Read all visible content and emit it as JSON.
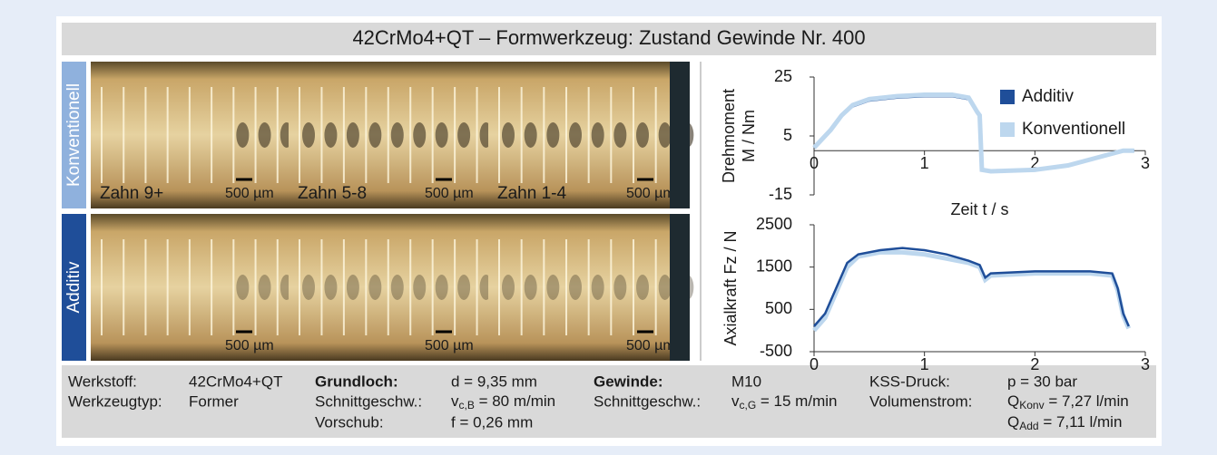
{
  "header": {
    "title": "42CrMo4+QT – Formwerkzeug: Zustand Gewinde Nr. 400"
  },
  "photos": {
    "rows": [
      "Konventionell",
      "Additiv"
    ],
    "zones": [
      "Zahn 9+",
      "Zahn 5-8",
      "Zahn 1-4"
    ],
    "scale": "500 µm"
  },
  "chart_data": [
    {
      "type": "line",
      "y_label": "Drehmoment\nM / Nm",
      "x_label": "Zeit t / s",
      "x": [
        0,
        0.05,
        0.15,
        0.25,
        0.35,
        0.5,
        0.75,
        1.0,
        1.25,
        1.4,
        1.48,
        1.5,
        1.52,
        1.6,
        2.0,
        2.3,
        2.6,
        2.8,
        2.9
      ],
      "series": [
        {
          "name": "Additiv",
          "color": "#1f4e99",
          "values": [
            1,
            3,
            7,
            12,
            15,
            17,
            18,
            18.5,
            18.5,
            17.5,
            13,
            12,
            -6.5,
            -7,
            -6.5,
            -5,
            -2,
            0,
            0
          ]
        },
        {
          "name": "Konventionell",
          "color": "#bdd7ee",
          "values": [
            1,
            3,
            7,
            12,
            15.5,
            17.5,
            18.5,
            19,
            19,
            18,
            13,
            12,
            -6.5,
            -7,
            -6.5,
            -5,
            -2,
            0,
            0
          ]
        }
      ],
      "xlim": [
        0,
        3
      ],
      "xticks": [
        0,
        1,
        2,
        3
      ],
      "ylim": [
        -15,
        25
      ],
      "yticks": [
        -15,
        5,
        25
      ],
      "x_axis_at": 0,
      "legend": "top-right"
    },
    {
      "type": "line",
      "y_label": "Axialkraft Fz / N",
      "x": [
        0,
        0.1,
        0.2,
        0.3,
        0.4,
        0.6,
        0.8,
        1.0,
        1.2,
        1.4,
        1.5,
        1.55,
        1.6,
        2.0,
        2.5,
        2.7,
        2.75,
        2.8,
        2.85
      ],
      "series": [
        {
          "name": "Konventionell",
          "color": "#bdd7ee",
          "values": [
            0,
            300,
            900,
            1500,
            1750,
            1850,
            1850,
            1800,
            1700,
            1600,
            1500,
            1200,
            1300,
            1350,
            1350,
            1300,
            950,
            350,
            50
          ]
        },
        {
          "name": "Additiv",
          "color": "#1f4e99",
          "values": [
            100,
            400,
            1000,
            1600,
            1800,
            1900,
            1950,
            1900,
            1800,
            1650,
            1550,
            1250,
            1350,
            1400,
            1400,
            1350,
            1000,
            400,
            100
          ]
        }
      ],
      "xlim": [
        0,
        3
      ],
      "xticks": [
        0,
        1,
        2,
        3
      ],
      "ylim": [
        -500,
        2500
      ],
      "yticks": [
        -500,
        500,
        1500,
        2500
      ],
      "x_axis_at": -500
    }
  ],
  "parameters": {
    "material": {
      "label": "Werkstoff:",
      "value": "42CrMo4+QT"
    },
    "tool": {
      "label": "Werkzeugtyp:",
      "value": "Former"
    },
    "hole": {
      "label": "Grundloch:",
      "value": "d = 9,35 mm"
    },
    "hole_speed": {
      "label": "Schnittgeschw.:",
      "main": "v",
      "sub": "c,B",
      "rest": " = 80 m/min"
    },
    "feed": {
      "label": "Vorschub:",
      "value": "f = 0,26 mm"
    },
    "thread": {
      "label": "Gewinde:",
      "value": "M10"
    },
    "thread_speed": {
      "label": "Schnittgeschw.:",
      "main": "v",
      "sub": "c,G",
      "rest": " = 15 m/min"
    },
    "pressure": {
      "label": "KSS-Druck:",
      "value": "p = 30 bar"
    },
    "flow": {
      "label": "Volumenstrom:",
      "main": "Q",
      "sub": "Konv",
      "rest": " = 7,27 l/min"
    },
    "flow2": {
      "main": "Q",
      "sub": "Add",
      "rest": " = 7,11 l/min"
    }
  }
}
